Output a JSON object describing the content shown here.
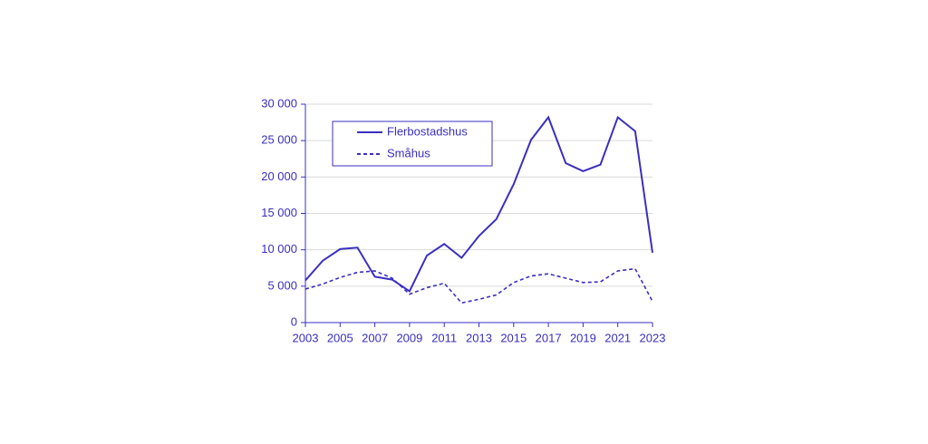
{
  "chart_data": {
    "type": "line",
    "x": [
      2003,
      2004,
      2005,
      2006,
      2007,
      2008,
      2009,
      2010,
      2011,
      2012,
      2013,
      2014,
      2015,
      2016,
      2017,
      2018,
      2019,
      2020,
      2021,
      2022,
      2023
    ],
    "series": [
      {
        "name": "Flerbostadshus",
        "color": "#3a2fc0",
        "line_style": "solid",
        "values": [
          5800,
          8500,
          10100,
          10300,
          6300,
          5900,
          4300,
          9200,
          10800,
          8900,
          11900,
          14200,
          19000,
          25100,
          28200,
          21900,
          20800,
          21700,
          28200,
          26300,
          9600
        ]
      },
      {
        "name": "Småhus",
        "color": "#3a2fc0",
        "line_style": "dashed",
        "values": [
          4600,
          5300,
          6200,
          6900,
          7100,
          6100,
          3900,
          4800,
          5400,
          2700,
          3200,
          3800,
          5500,
          6400,
          6700,
          6100,
          5500,
          5600,
          7100,
          7400,
          2900
        ]
      }
    ],
    "xlim": [
      2003,
      2023
    ],
    "xticks": [
      2003,
      2005,
      2007,
      2009,
      2011,
      2013,
      2015,
      2017,
      2019,
      2021,
      2023
    ],
    "ylim": [
      0,
      30000
    ],
    "yticks": [
      0,
      {
        "value": 5000,
        "label": "5 000"
      },
      {
        "value": 10000,
        "label": "10 000"
      },
      {
        "value": 15000,
        "label": "15 000"
      },
      {
        "value": 20000,
        "label": "20 000"
      },
      {
        "value": 25000,
        "label": "25 000"
      },
      {
        "value": 30000,
        "label": "30 000"
      }
    ],
    "grid": true,
    "legend": "top-left"
  }
}
